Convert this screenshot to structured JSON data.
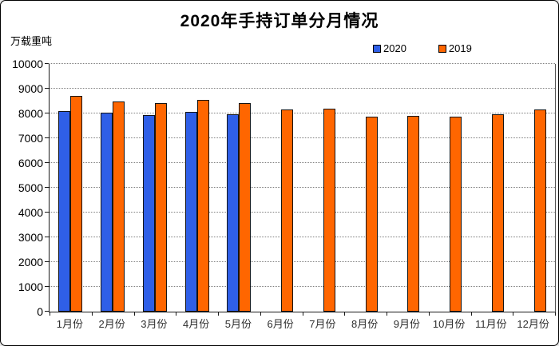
{
  "title": "2020年手持订单分月情况",
  "unit_label": "万载重吨",
  "chart_data": {
    "type": "bar",
    "title": "2020年手持订单分月情况",
    "ylabel": "万载重吨",
    "xlabel": "",
    "categories": [
      "1月份",
      "2月份",
      "3月份",
      "4月份",
      "5月份",
      "6月份",
      "7月份",
      "8月份",
      "9月份",
      "10月份",
      "11月份",
      "12月份"
    ],
    "series": [
      {
        "name": "2020",
        "color": "#2F5FE7",
        "values": [
          8100,
          8040,
          7930,
          8070,
          7970,
          null,
          null,
          null,
          null,
          null,
          null,
          null
        ]
      },
      {
        "name": "2019",
        "color": "#FF6600",
        "values": [
          8710,
          8490,
          8410,
          8550,
          8430,
          8170,
          8200,
          7880,
          7890,
          7860,
          7970,
          8170
        ]
      }
    ],
    "ylim": [
      0,
      10000
    ],
    "ytick_step": 1000,
    "yticks": [
      0,
      1000,
      2000,
      3000,
      4000,
      5000,
      6000,
      7000,
      8000,
      9000,
      10000
    ],
    "grid": true,
    "gridline_style": "dotted",
    "legend_position": "top-right",
    "bar_border_color": "#141414"
  }
}
